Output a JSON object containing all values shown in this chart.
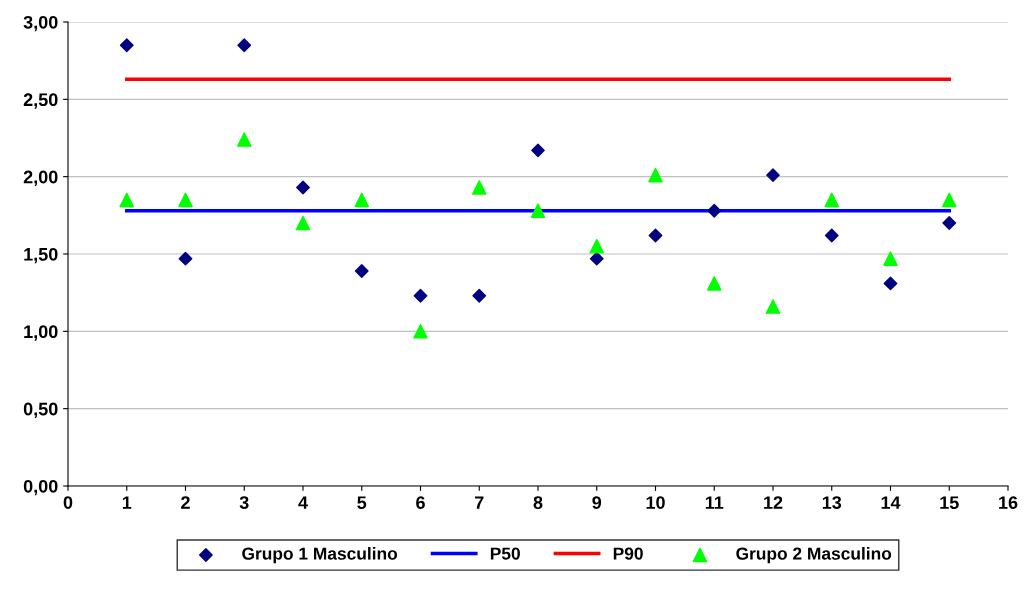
{
  "chart_data": {
    "type": "scatter",
    "xlim": [
      0,
      16
    ],
    "xticks": [
      0,
      1,
      2,
      3,
      4,
      5,
      6,
      7,
      8,
      9,
      10,
      11,
      12,
      13,
      14,
      15,
      16
    ],
    "ylim": [
      0,
      3
    ],
    "yticks": [
      {
        "value": 0,
        "label": "0,00"
      },
      {
        "value": 0.5,
        "label": "0,50"
      },
      {
        "value": 1,
        "label": "1,00"
      },
      {
        "value": 1.5,
        "label": "1,50"
      },
      {
        "value": 2,
        "label": "2,00"
      },
      {
        "value": 2.5,
        "label": "2,50"
      },
      {
        "value": 3,
        "label": "3,00"
      }
    ],
    "grid": "y",
    "legend": "bottom",
    "series": [
      {
        "name": "Grupo 1 Masculino",
        "marker": "diamond",
        "color": "#000080",
        "x": [
          1,
          2,
          3,
          4,
          5,
          6,
          7,
          8,
          9,
          10,
          11,
          12,
          13,
          14,
          15
        ],
        "values": [
          2.85,
          1.47,
          2.85,
          1.93,
          1.39,
          1.23,
          1.23,
          2.17,
          1.47,
          1.62,
          1.78,
          2.01,
          1.62,
          1.31,
          1.7
        ]
      },
      {
        "name": "P50",
        "type": "line",
        "marker": "none",
        "color": "#0000ff",
        "x": [
          1,
          15
        ],
        "values": [
          1.78,
          1.78
        ]
      },
      {
        "name": "P90",
        "type": "line",
        "marker": "none",
        "color": "#ff0000",
        "x": [
          1,
          15
        ],
        "values": [
          2.63,
          2.63
        ]
      },
      {
        "name": "Grupo 2 Masculino",
        "marker": "triangle",
        "color": "#00ff00",
        "x": [
          1,
          2,
          3,
          4,
          5,
          6,
          7,
          8,
          9,
          10,
          11,
          12,
          13,
          14,
          15
        ],
        "values": [
          1.85,
          1.85,
          2.24,
          1.7,
          1.85,
          1.0,
          1.93,
          1.78,
          1.55,
          2.01,
          1.31,
          1.16,
          1.85,
          1.47,
          1.85
        ]
      }
    ]
  }
}
